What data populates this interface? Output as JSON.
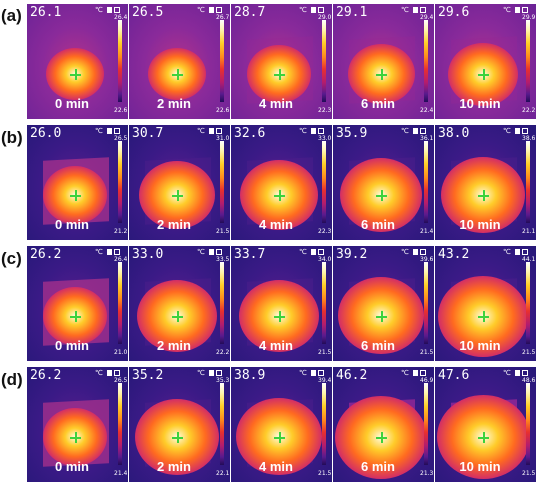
{
  "rows": [
    {
      "label": "(a)",
      "tiles": [
        {
          "temp": "26.1",
          "unit": "℃",
          "max": "26.4",
          "min": "22.6",
          "time": "0 min",
          "glow": 0.22,
          "plate": "none"
        },
        {
          "temp": "26.5",
          "unit": "℃",
          "max": "26.7",
          "min": "22.6",
          "time": "2 min",
          "glow": 0.22,
          "plate": "none"
        },
        {
          "temp": "28.7",
          "unit": "℃",
          "max": "29.0",
          "min": "22.3",
          "time": "4 min",
          "glow": 0.3,
          "plate": "faint"
        },
        {
          "temp": "29.1",
          "unit": "℃",
          "max": "29.4",
          "min": "22.4",
          "time": "6 min",
          "glow": 0.34,
          "plate": "faint"
        },
        {
          "temp": "29.6",
          "unit": "℃",
          "max": "29.9",
          "min": "22.2",
          "time": "10 min",
          "glow": 0.38,
          "plate": "faint"
        }
      ]
    },
    {
      "label": "(b)",
      "tiles": [
        {
          "temp": "26.0",
          "unit": "℃",
          "max": "26.5",
          "min": "21.2",
          "time": "0 min",
          "glow": 0.3,
          "plate": "visible"
        },
        {
          "temp": "30.7",
          "unit": "℃",
          "max": "31.0",
          "min": "21.5",
          "time": "2 min",
          "glow": 0.45,
          "plate": "dark"
        },
        {
          "temp": "32.6",
          "unit": "℃",
          "max": "33.0",
          "min": "22.3",
          "time": "4 min",
          "glow": 0.47,
          "plate": "dark"
        },
        {
          "temp": "35.9",
          "unit": "℃",
          "max": "36.1",
          "min": "21.4",
          "time": "6 min",
          "glow": 0.52,
          "plate": "dark"
        },
        {
          "temp": "38.0",
          "unit": "℃",
          "max": "38.6",
          "min": "21.1",
          "time": "10 min",
          "glow": 0.55,
          "plate": "dark"
        }
      ]
    },
    {
      "label": "(c)",
      "tiles": [
        {
          "temp": "26.2",
          "unit": "℃",
          "max": "26.4",
          "min": "21.0",
          "time": "0 min",
          "glow": 0.3,
          "plate": "visible"
        },
        {
          "temp": "33.0",
          "unit": "℃",
          "max": "33.5",
          "min": "22.2",
          "time": "2 min",
          "glow": 0.5,
          "plate": "dark"
        },
        {
          "temp": "33.7",
          "unit": "℃",
          "max": "34.0",
          "min": "21.5",
          "time": "4 min",
          "glow": 0.5,
          "plate": "dark"
        },
        {
          "temp": "39.2",
          "unit": "℃",
          "max": "39.6",
          "min": "21.5",
          "time": "6 min",
          "glow": 0.58,
          "plate": "dark"
        },
        {
          "temp": "43.2",
          "unit": "℃",
          "max": "44.1",
          "min": "21.5",
          "time": "10 min",
          "glow": 0.62,
          "plate": "dark"
        }
      ]
    },
    {
      "label": "(d)",
      "tiles": [
        {
          "temp": "26.2",
          "unit": "℃",
          "max": "26.5",
          "min": "21.4",
          "time": "0 min",
          "glow": 0.3,
          "plate": "visible"
        },
        {
          "temp": "35.2",
          "unit": "℃",
          "max": "35.3",
          "min": "22.1",
          "time": "2 min",
          "glow": 0.55,
          "plate": "dark"
        },
        {
          "temp": "38.9",
          "unit": "℃",
          "max": "39.4",
          "min": "21.5",
          "time": "4 min",
          "glow": 0.58,
          "plate": "dark"
        },
        {
          "temp": "46.2",
          "unit": "℃",
          "max": "46.9",
          "min": "21.3",
          "time": "6 min",
          "glow": 0.65,
          "plate": "visible-warm"
        },
        {
          "temp": "47.6",
          "unit": "℃",
          "max": "48.6",
          "min": "21.5",
          "time": "10 min",
          "glow": 0.66,
          "plate": "visible-warm"
        }
      ]
    }
  ],
  "colors": {
    "background_dark": "#2a1a78",
    "background_magenta": "#8a2a9a",
    "glow_core": "#fffbe0",
    "glow_mid": "#ffcc2a",
    "glow_outer": "#ff6a20",
    "glow_edge": "#d02a6a",
    "crosshair": "#3cd23c",
    "text": "#ffffff"
  }
}
